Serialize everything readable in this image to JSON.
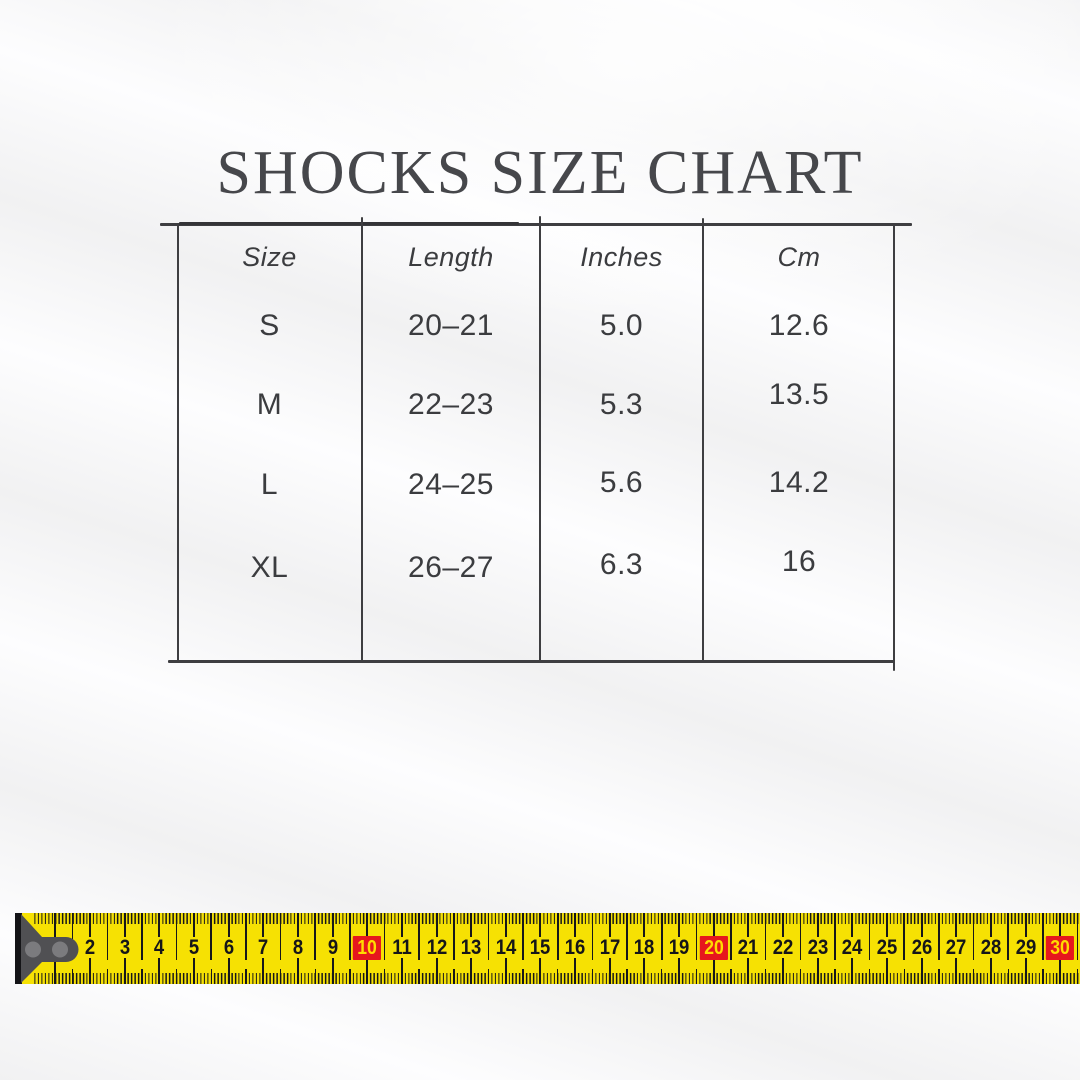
{
  "title": "SHOCKS SIZE CHART",
  "table": {
    "headers": [
      "Size",
      "Length",
      "Inches",
      "Cm"
    ],
    "rows": [
      [
        "S",
        "20–21",
        "5.0",
        "12.6"
      ],
      [
        "M",
        "22–23",
        "5.3",
        "13.5"
      ],
      [
        "L",
        "24–25",
        "5.6",
        "14.2"
      ],
      [
        "XL",
        "26–27",
        "6.3",
        "16"
      ]
    ]
  },
  "ruler": {
    "numbers": [
      2,
      3,
      4,
      5,
      6,
      7,
      8,
      9,
      10,
      11,
      12,
      13,
      14,
      15,
      16,
      17,
      18,
      19,
      20,
      21,
      22,
      23,
      24,
      25,
      26,
      27,
      28,
      29,
      30
    ],
    "highlighted_numbers": [
      10,
      20,
      30
    ],
    "first_tick": 1,
    "last_tick": 30
  },
  "colors": {
    "tape_yellow": "#f6e103",
    "tape_red": "#e6171d",
    "tape_red_text": "#ffdc00",
    "line": "#3e3e41",
    "text": "#3b3c3f",
    "title_text": "#46474b",
    "metal_dark": "#505053",
    "metal_light": "#7b7b7e"
  }
}
